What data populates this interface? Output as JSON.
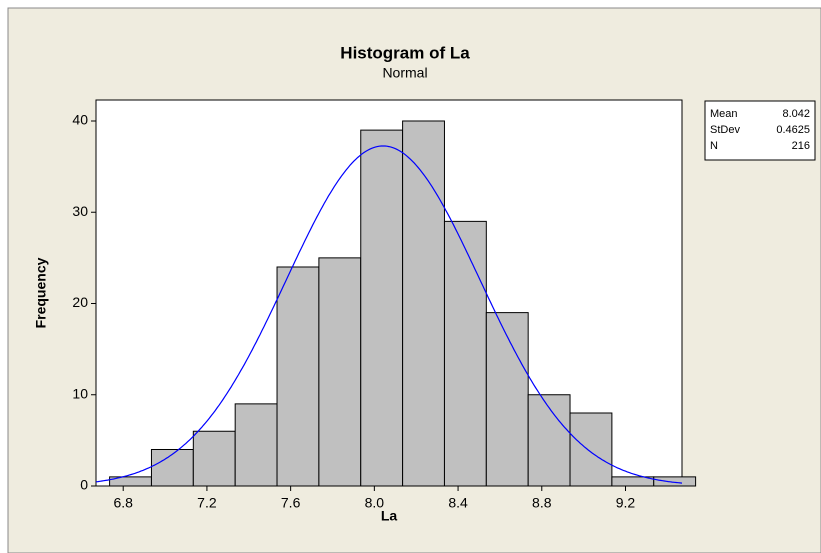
{
  "chart_data": {
    "type": "histogram",
    "title": "Histogram of La",
    "subtitle": "Normal",
    "x_label": "La",
    "y_label": "Frequency",
    "bins": [
      6.735,
      6.935,
      7.135,
      7.335,
      7.535,
      7.735,
      7.935,
      8.135,
      8.335,
      8.535,
      8.735,
      8.935,
      9.135,
      9.335,
      9.535
    ],
    "values": [
      1,
      4,
      6,
      9,
      24,
      25,
      39,
      40,
      29,
      19,
      10,
      8,
      1,
      1
    ],
    "color": "#c0c0c0",
    "curve_color": "#0000ff",
    "xlim": [
      6.67,
      9.47
    ],
    "xticks": [
      6.8,
      7.2,
      7.6,
      {
        "value": 8,
        "label": "8.0"
      },
      8.4,
      8.8,
      9.2
    ],
    "ylim": [
      0,
      42.3
    ],
    "yticks": [
      0,
      10,
      20,
      30,
      40
    ],
    "stats": [
      {
        "label": "Mean",
        "value": 8.042
      },
      {
        "label": "StDev",
        "value": 0.4625
      },
      {
        "label": "N",
        "value": 216
      }
    ]
  }
}
